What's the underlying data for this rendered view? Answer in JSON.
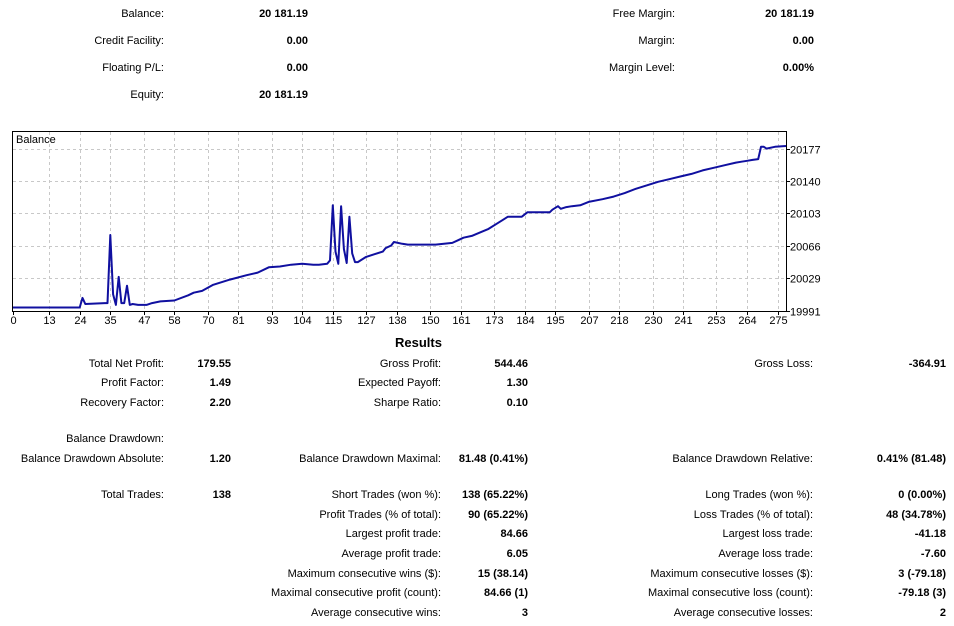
{
  "account": {
    "balance_label": "Balance:",
    "balance_value": "20 181.19",
    "credit_label": "Credit Facility:",
    "credit_value": "0.00",
    "floating_label": "Floating P/L:",
    "floating_value": "0.00",
    "equity_label": "Equity:",
    "equity_value": "20 181.19",
    "free_margin_label": "Free Margin:",
    "free_margin_value": "20 181.19",
    "margin_label": "Margin:",
    "margin_value": "0.00",
    "margin_level_label": "Margin Level:",
    "margin_level_value": "0.00%"
  },
  "results": {
    "title": "Results",
    "total_net_profit_label": "Total Net Profit:",
    "total_net_profit_value": "179.55",
    "gross_profit_label": "Gross Profit:",
    "gross_profit_value": "544.46",
    "gross_loss_label": "Gross Loss:",
    "gross_loss_value": "-364.91",
    "profit_factor_label": "Profit Factor:",
    "profit_factor_value": "1.49",
    "expected_payoff_label": "Expected Payoff:",
    "expected_payoff_value": "1.30",
    "recovery_factor_label": "Recovery Factor:",
    "recovery_factor_value": "2.20",
    "sharpe_label": "Sharpe Ratio:",
    "sharpe_value": "0.10",
    "balance_drawdown_label": "Balance Drawdown:",
    "bd_absolute_label": "Balance Drawdown Absolute:",
    "bd_absolute_value": "1.20",
    "bd_maximal_label": "Balance Drawdown Maximal:",
    "bd_maximal_value": "81.48 (0.41%)",
    "bd_relative_label": "Balance Drawdown Relative:",
    "bd_relative_value": "0.41% (81.48)",
    "total_trades_label": "Total Trades:",
    "total_trades_value": "138",
    "short_trades_label": "Short Trades (won %):",
    "short_trades_value": "138 (65.22%)",
    "long_trades_label": "Long Trades (won %):",
    "long_trades_value": "0 (0.00%)",
    "profit_trades_label": "Profit Trades (% of total):",
    "profit_trades_value": "90 (65.22%)",
    "loss_trades_label": "Loss Trades (% of total):",
    "loss_trades_value": "48 (34.78%)",
    "largest_profit_label": "Largest profit trade:",
    "largest_profit_value": "84.66",
    "largest_loss_label": "Largest loss trade:",
    "largest_loss_value": "-41.18",
    "avg_profit_label": "Average profit trade:",
    "avg_profit_value": "6.05",
    "avg_loss_label": "Average loss trade:",
    "avg_loss_value": "-7.60",
    "max_cons_wins_label": "Maximum consecutive wins ($):",
    "max_cons_wins_value": "15 (38.14)",
    "max_cons_losses_label": "Maximum consecutive losses ($):",
    "max_cons_losses_value": "3 (-79.18)",
    "maximal_cons_profit_label": "Maximal consecutive profit (count):",
    "maximal_cons_profit_value": "84.66 (1)",
    "maximal_cons_loss_label": "Maximal consecutive loss (count):",
    "maximal_cons_loss_value": "-79.18 (3)",
    "avg_cons_wins_label": "Average consecutive wins:",
    "avg_cons_wins_value": "3",
    "avg_cons_losses_label": "Average consecutive losses:",
    "avg_cons_losses_value": "2"
  },
  "chart_data": {
    "type": "line",
    "series_label": "Balance",
    "line_color": "#1010a0",
    "grid": true,
    "x_ticks": [
      0,
      13,
      24,
      35,
      47,
      58,
      70,
      81,
      93,
      104,
      115,
      127,
      138,
      150,
      161,
      173,
      184,
      195,
      207,
      218,
      230,
      241,
      253,
      264,
      275
    ],
    "y_ticks": [
      19991,
      20029,
      20066,
      20103,
      20140,
      20177
    ],
    "xlim": [
      0,
      278
    ],
    "ylim": [
      19991,
      20196
    ],
    "x": [
      0,
      24,
      25,
      26,
      33,
      34,
      35,
      36,
      37,
      38,
      39,
      40,
      41,
      42,
      43,
      45,
      48,
      50,
      53,
      58,
      63,
      65,
      68,
      72,
      78,
      84,
      88,
      92,
      96,
      100,
      104,
      108,
      110,
      113,
      114,
      115,
      116,
      117,
      118,
      119,
      120,
      121,
      122,
      123,
      124,
      127,
      130,
      133,
      134,
      136,
      137,
      140,
      142,
      145,
      148,
      152,
      158,
      160,
      162,
      165,
      168,
      171,
      174,
      176,
      178,
      183,
      185,
      189,
      193,
      194,
      196,
      197,
      199,
      201,
      204,
      207,
      212,
      216,
      220,
      224,
      228,
      232,
      236,
      240,
      244,
      248,
      252,
      256,
      260,
      262,
      264,
      266,
      268,
      269,
      270,
      271,
      274,
      278
    ],
    "y": [
      19995,
      19995,
      20006,
      19999,
      20000,
      20000,
      20078,
      20010,
      19998,
      20030,
      20000,
      20000,
      20020,
      19998,
      19999,
      19998,
      19998,
      20000,
      20002,
      20003,
      20009,
      20012,
      20014,
      20021,
      20027,
      20032,
      20035,
      20041,
      20042,
      20044,
      20045,
      20044,
      20044,
      20045,
      20049,
      20112,
      20059,
      20045,
      20111,
      20062,
      20046,
      20099,
      20057,
      20047,
      20047,
      20053,
      20056,
      20059,
      20063,
      20066,
      20070,
      20068,
      20067,
      20067,
      20067,
      20067,
      20069,
      20072,
      20075,
      20077,
      20081,
      20085,
      20091,
      20095,
      20099,
      20099,
      20104,
      20104,
      20104,
      20107,
      20111,
      20108,
      20110,
      20111,
      20112,
      20116,
      20119,
      20122,
      20126,
      20131,
      20135,
      20139,
      20142,
      20145,
      20148,
      20152,
      20155,
      20158,
      20161,
      20162,
      20163,
      20164,
      20165,
      20179,
      20179,
      20177,
      20179,
      20180
    ]
  }
}
